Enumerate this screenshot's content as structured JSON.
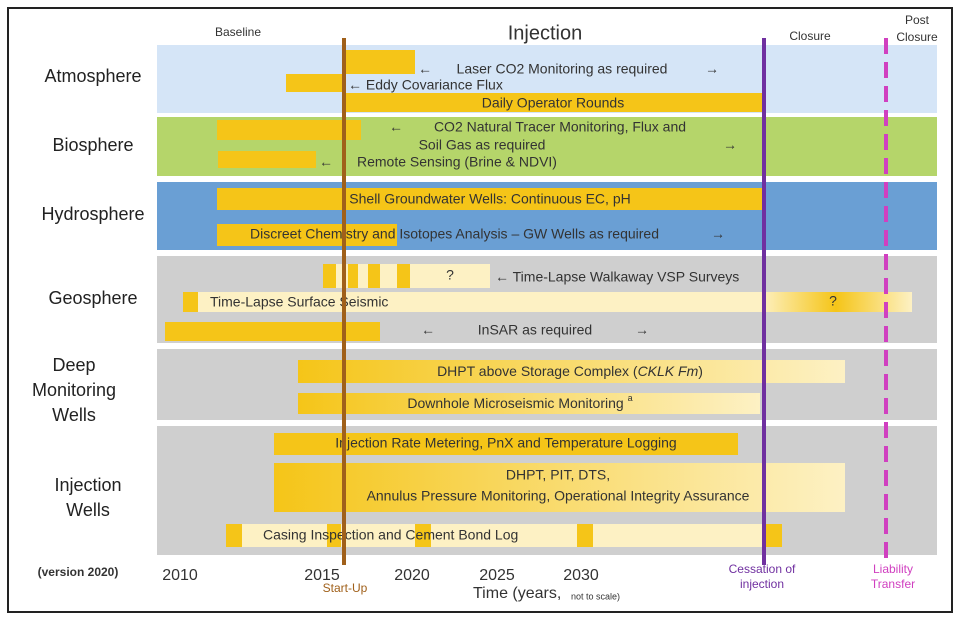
{
  "phases": {
    "baseline": "Baseline",
    "injection": "Injection",
    "closure": "Closure",
    "post_closure": [
      "Post",
      "Closure"
    ]
  },
  "rows": [
    {
      "label": [
        "Atmosphere"
      ],
      "items": [
        "←",
        "Laser CO2 Monitoring as required",
        "→",
        "← Eddy Covariance Flux",
        "Daily Operator Rounds"
      ]
    },
    {
      "label": [
        "Biosphere"
      ],
      "items": [
        "←",
        "CO2 Natural Tracer Monitoring, Flux and",
        "Soil Gas  as required",
        "→",
        "←",
        "Remote Sensing (Brine & NDVI)"
      ]
    },
    {
      "label": [
        "Hydrosphere"
      ],
      "items": [
        "Shell Groundwater Wells: Continuous EC, pH",
        "Discreet Chemistry and Isotopes Analysis – GW Wells as required",
        "→"
      ]
    },
    {
      "label": [
        "Geosphere"
      ],
      "items": [
        "?",
        "← Time-Lapse Walkaway VSP Surveys",
        "Time-Lapse Surface Seismic",
        "?",
        "←",
        "InSAR as required",
        "→"
      ]
    },
    {
      "label": [
        "Deep",
        "Monitoring",
        "Wells"
      ],
      "items": [
        [
          "DHPT above Storage Complex (",
          "CKLK Fm",
          ")"
        ],
        [
          "Downhole Microseismic Monitoring ",
          "a"
        ]
      ]
    },
    {
      "label": [
        "Injection",
        "Wells"
      ],
      "items": [
        "Injection Rate Metering, PnX and Temperature Logging",
        "DHPT, PIT, DTS,",
        "Annulus Pressure Monitoring, Operational Integrity Assurance",
        "Casing Inspection and Cement Bond Log"
      ]
    }
  ],
  "version": "(version 2020)",
  "axis": {
    "ticks": [
      "2010",
      "2015",
      "2020",
      "2025",
      "2030"
    ],
    "title": "Time (years,",
    "note": "not to scale)"
  },
  "markers": {
    "start_up": "Start-Up",
    "cessation": [
      "Cessation of",
      "injection"
    ],
    "liability": [
      "Liability",
      "Transfer"
    ]
  }
}
